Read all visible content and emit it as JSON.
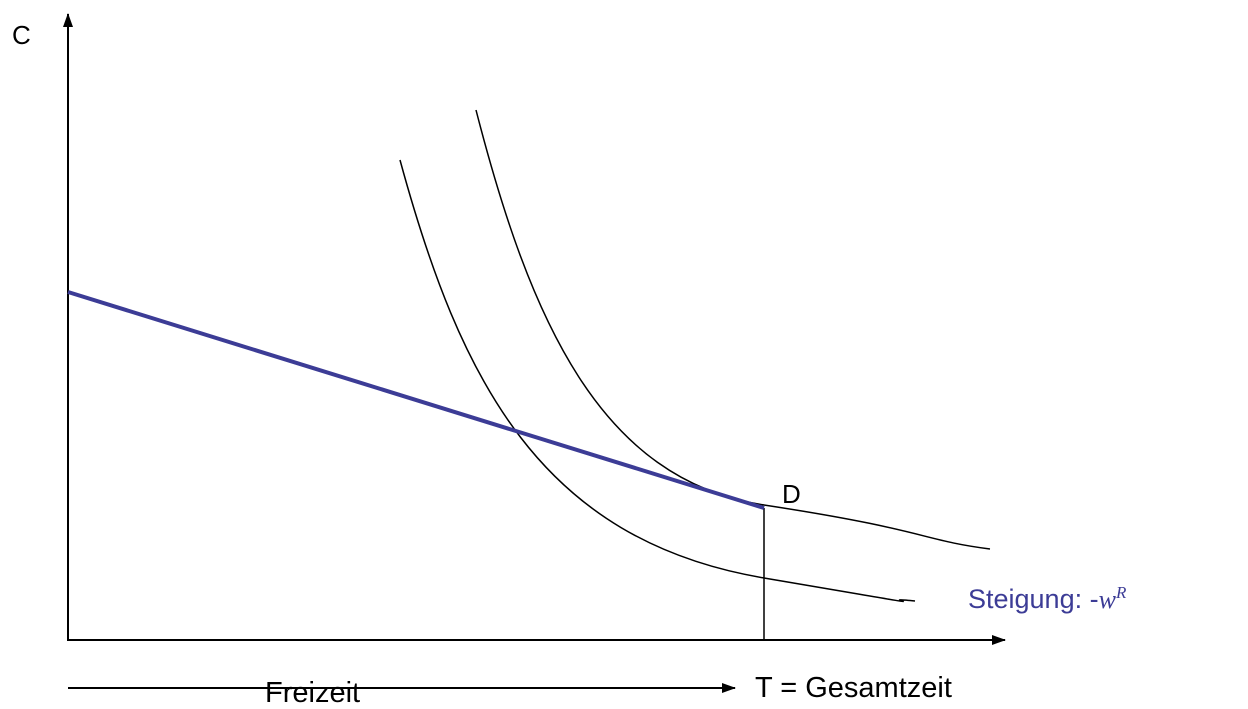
{
  "labels": {
    "y_axis": "C",
    "point": "D",
    "x_axis_end": "T = Gesamtzeit",
    "x_axis": "Freizeit",
    "slope_prefix": "Steigung: -",
    "slope_var": "w",
    "slope_sup": "R"
  }
}
